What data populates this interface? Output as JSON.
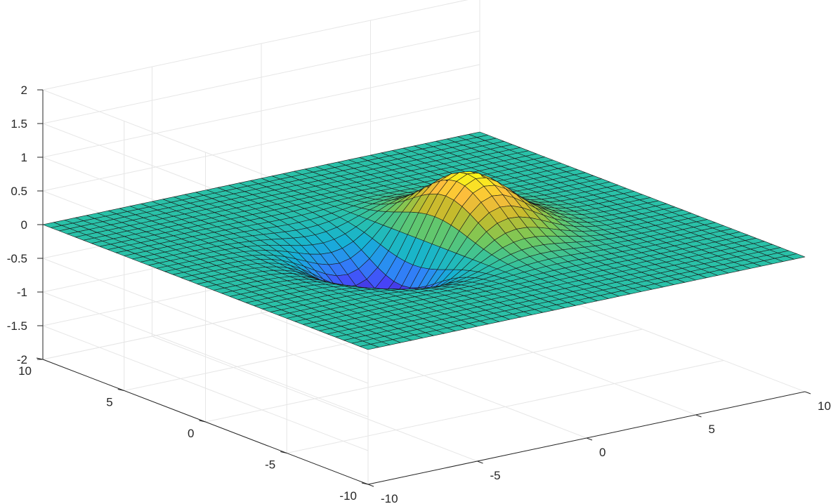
{
  "chart_data": {
    "type": "surface",
    "title": "",
    "xlabel": "",
    "ylabel": "",
    "zlabel": "",
    "function": "z = 2*(x/3)*exp(-(x/3)^2 - (y/3)^2)",
    "x_range": [
      -10,
      10
    ],
    "y_range": [
      -10,
      10
    ],
    "z_range": [
      -2,
      2
    ],
    "grid_samples": 41,
    "x_ticks": [
      {
        "value": -10,
        "label": "-10"
      },
      {
        "value": -5,
        "label": "-5"
      },
      {
        "value": 0,
        "label": "0"
      },
      {
        "value": 5,
        "label": "5"
      },
      {
        "value": 10,
        "label": "10"
      }
    ],
    "y_ticks": [
      {
        "value": -10,
        "label": "-10"
      },
      {
        "value": -5,
        "label": "-5"
      },
      {
        "value": 0,
        "label": "0"
      },
      {
        "value": 5,
        "label": "5"
      },
      {
        "value": 10,
        "label": "10"
      }
    ],
    "z_ticks": [
      {
        "value": -2,
        "label": "-2"
      },
      {
        "value": -1.5,
        "label": "-1.5"
      },
      {
        "value": -1,
        "label": "-1"
      },
      {
        "value": -0.5,
        "label": "-0.5"
      },
      {
        "value": 0,
        "label": "0"
      },
      {
        "value": 0.5,
        "label": "0.5"
      },
      {
        "value": 1,
        "label": "1"
      },
      {
        "value": 1.5,
        "label": "1.5"
      },
      {
        "value": 2,
        "label": "2"
      }
    ],
    "grid": true,
    "colormap": [
      "#3e26a8",
      "#4743f8",
      "#2e87f7",
      "#15b1d4",
      "#2ac1a8",
      "#75c95b",
      "#c4bb2c",
      "#fcbe3c",
      "#f9fb15"
    ],
    "view": {
      "azimuth_deg": -37.5,
      "elevation_deg": 30
    }
  }
}
